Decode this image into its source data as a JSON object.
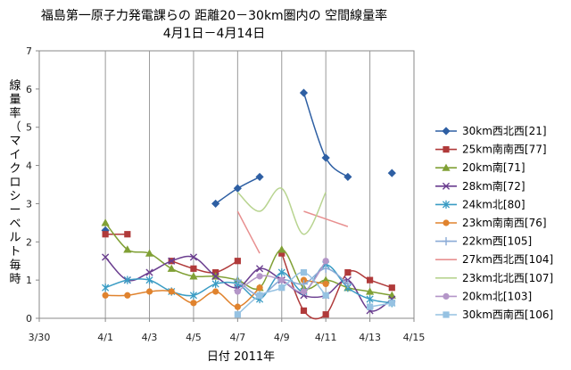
{
  "chart_data": {
    "type": "line",
    "title": "福島第一原子力発電課らの 距離20－30km圏内の 空間線量率",
    "subtitle": "4月1日－4月14日",
    "xlabel": "日付 2011年",
    "ylabel": "線量率（マイクロシーベルト毎時",
    "xlim": [
      -2,
      15
    ],
    "ylim": [
      0,
      7
    ],
    "x_ticks": [
      {
        "v": -2,
        "label": "3/30"
      },
      {
        "v": 1,
        "label": "4/1"
      },
      {
        "v": 3,
        "label": "4/3"
      },
      {
        "v": 5,
        "label": "4/5"
      },
      {
        "v": 7,
        "label": "4/7"
      },
      {
        "v": 9,
        "label": "4/9"
      },
      {
        "v": 11,
        "label": "4/11"
      },
      {
        "v": 13,
        "label": "4/13"
      },
      {
        "v": 15,
        "label": "4/15"
      }
    ],
    "y_ticks": [
      0,
      1,
      2,
      3,
      4,
      5,
      6,
      7
    ],
    "grid": "vertical",
    "legend": "right",
    "series": [
      {
        "name": "30km西北西[21]",
        "color": "#2e5fa3",
        "marker": "diamond",
        "points": [
          [
            1,
            2.3
          ],
          null,
          [
            6,
            3.0
          ],
          [
            7,
            3.4
          ],
          [
            8,
            3.7
          ],
          null,
          [
            10,
            5.9
          ],
          [
            11,
            4.2
          ],
          [
            12,
            3.7
          ],
          null,
          [
            14,
            3.8
          ]
        ]
      },
      {
        "name": "25km南南西[77]",
        "color": "#b03a3a",
        "marker": "square",
        "points": [
          [
            1,
            2.2
          ],
          [
            2,
            2.2
          ],
          null,
          [
            4,
            1.5
          ],
          [
            5,
            1.3
          ],
          [
            6,
            1.2
          ],
          [
            7,
            1.5
          ],
          null,
          [
            9,
            1.7
          ],
          [
            10,
            0.2
          ],
          [
            11,
            0.1
          ],
          [
            12,
            1.2
          ],
          [
            13,
            1.0
          ],
          [
            14,
            0.8
          ]
        ]
      },
      {
        "name": "20km南[71]",
        "color": "#80a035",
        "marker": "triangle",
        "points": [
          [
            1,
            2.5
          ],
          [
            2,
            1.8
          ],
          [
            3,
            1.7
          ],
          [
            4,
            1.3
          ],
          [
            5,
            1.1
          ],
          [
            6,
            1.1
          ],
          [
            7,
            1.0
          ],
          [
            8,
            0.8
          ],
          [
            9,
            1.8
          ],
          [
            10,
            0.8
          ],
          [
            11,
            1.0
          ],
          [
            12,
            0.8
          ],
          [
            13,
            0.7
          ],
          [
            14,
            0.6
          ]
        ]
      },
      {
        "name": "28km南[72]",
        "color": "#6a3d8f",
        "marker": "x",
        "points": [
          [
            1,
            1.6
          ],
          [
            2,
            1.0
          ],
          [
            3,
            1.2
          ],
          [
            4,
            1.5
          ],
          [
            5,
            1.6
          ],
          [
            6,
            1.1
          ],
          [
            7,
            0.8
          ],
          [
            8,
            1.3
          ],
          [
            9,
            1.0
          ],
          [
            10,
            0.6
          ],
          [
            11,
            0.6
          ],
          [
            12,
            1.0
          ],
          [
            13,
            0.2
          ],
          [
            14,
            0.5
          ]
        ]
      },
      {
        "name": "24km北[80]",
        "color": "#3a9cc4",
        "marker": "star",
        "points": [
          [
            1,
            0.8
          ],
          [
            2,
            1.0
          ],
          [
            3,
            1.0
          ],
          [
            4,
            0.7
          ],
          [
            5,
            0.6
          ],
          [
            6,
            0.9
          ],
          [
            7,
            0.9
          ],
          [
            8,
            0.5
          ],
          [
            9,
            1.2
          ],
          [
            10,
            0.7
          ],
          [
            11,
            1.4
          ],
          [
            12,
            0.8
          ],
          [
            13,
            0.5
          ],
          [
            14,
            0.4
          ]
        ]
      },
      {
        "name": "23km南南西[76]",
        "color": "#e0832e",
        "marker": "circle",
        "points": [
          [
            1,
            0.6
          ],
          [
            2,
            0.6
          ],
          [
            3,
            0.7
          ],
          [
            4,
            0.7
          ],
          [
            5,
            0.4
          ],
          [
            6,
            0.7
          ],
          [
            7,
            0.3
          ],
          [
            8,
            0.8
          ],
          null,
          [
            10,
            1.0
          ],
          [
            11,
            0.9
          ]
        ]
      },
      {
        "name": "22km西[105]",
        "color": "#8aaad6",
        "marker": "plus",
        "points": [
          [
            7,
            1.0
          ],
          [
            8,
            0.6
          ],
          [
            9,
            1.0
          ],
          [
            10,
            0.9
          ],
          [
            11,
            1.3
          ],
          [
            12,
            0.9
          ]
        ]
      },
      {
        "name": "27km西北西[104]",
        "color": "#e89090",
        "marker": "dash",
        "points": [
          [
            7,
            2.8
          ],
          [
            8,
            1.7
          ],
          null,
          [
            10,
            2.8
          ],
          [
            12,
            2.4
          ]
        ]
      },
      {
        "name": "23km北北西[107]",
        "color": "#b8d490",
        "marker": "dash",
        "points": [
          [
            7,
            3.3
          ],
          [
            8,
            2.8
          ],
          [
            9,
            3.4
          ],
          [
            10,
            2.2
          ],
          [
            11,
            3.3
          ]
        ]
      },
      {
        "name": "20km北[103]",
        "color": "#b496c8",
        "marker": "circle",
        "points": [
          [
            7,
            0.7
          ],
          [
            8,
            1.1
          ],
          [
            9,
            1.0
          ],
          [
            10,
            0.7
          ],
          [
            11,
            1.5
          ]
        ]
      },
      {
        "name": "30km西南西[106]",
        "color": "#96c2e2",
        "marker": "square",
        "points": [
          [
            7,
            0.1
          ],
          [
            8,
            0.6
          ],
          [
            9,
            0.8
          ],
          [
            10,
            1.2
          ],
          [
            11,
            0.6
          ],
          null,
          [
            13,
            0.3
          ],
          [
            14,
            0.4
          ]
        ]
      }
    ]
  }
}
